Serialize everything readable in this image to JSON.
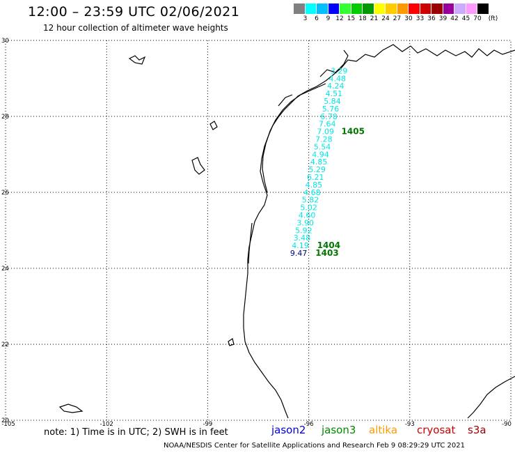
{
  "header": {
    "title": "12:00 – 23:59 UTC 02/06/2021",
    "subtitle": "12 hour collection of altimeter wave heights"
  },
  "legend": {
    "unit": "(ft)",
    "labels": [
      "3",
      "6",
      "9",
      "12",
      "15",
      "18",
      "21",
      "24",
      "27",
      "30",
      "33",
      "36",
      "39",
      "42",
      "45",
      "70"
    ],
    "colors": [
      "#808080",
      "#00ffff",
      "#00bfff",
      "#0000ff",
      "#33ff33",
      "#00cc00",
      "#009900",
      "#ffff00",
      "#ffcc00",
      "#ff9900",
      "#ff0000",
      "#cc0000",
      "#990000",
      "#990099",
      "#ccaaff",
      "#ff99ff",
      "#000000"
    ]
  },
  "axes": {
    "lon_labels": [
      "-105",
      "-102",
      "-99",
      "-96",
      "-93",
      "-90"
    ],
    "lat_labels": [
      "30",
      "28",
      "26",
      "24",
      "22",
      "20"
    ]
  },
  "tracks": [
    {
      "satellite": "jason2",
      "color": "#00e5e5",
      "points": [
        {
          "lat": 29.13,
          "lon": -95.1,
          "swh": "3.29"
        },
        {
          "lat": 28.93,
          "lon": -95.15,
          "swh": "4.48"
        },
        {
          "lat": 28.73,
          "lon": -95.2,
          "swh": "4.24"
        },
        {
          "lat": 28.53,
          "lon": -95.25,
          "swh": "4.51"
        },
        {
          "lat": 28.33,
          "lon": -95.3,
          "swh": "5.84"
        },
        {
          "lat": 28.13,
          "lon": -95.35,
          "swh": "5.76"
        },
        {
          "lat": 27.93,
          "lon": -95.4,
          "swh": "6.78"
        },
        {
          "lat": 27.73,
          "lon": -95.45,
          "swh": "7.64"
        },
        {
          "lat": 27.53,
          "lon": -95.5,
          "swh": "7.09"
        },
        {
          "lat": 27.33,
          "lon": -95.55,
          "swh": "7.28"
        },
        {
          "lat": 27.13,
          "lon": -95.6,
          "swh": "5.54"
        },
        {
          "lat": 26.93,
          "lon": -95.65,
          "swh": "4.94"
        },
        {
          "lat": 26.73,
          "lon": -95.7,
          "swh": "4.85"
        },
        {
          "lat": 26.53,
          "lon": -95.75,
          "swh": "5.29"
        },
        {
          "lat": 26.33,
          "lon": -95.8,
          "swh": "6.21"
        },
        {
          "lat": 26.13,
          "lon": -95.85,
          "swh": "4.85"
        },
        {
          "lat": 25.93,
          "lon": -95.9,
          "swh": "4.68"
        },
        {
          "lat": 25.73,
          "lon": -95.95,
          "swh": "5.82"
        },
        {
          "lat": 25.53,
          "lon": -96.0,
          "swh": "5.02"
        },
        {
          "lat": 25.33,
          "lon": -96.05,
          "swh": "4.60"
        },
        {
          "lat": 25.13,
          "lon": -96.1,
          "swh": "3.90"
        },
        {
          "lat": 24.93,
          "lon": -96.15,
          "swh": "5.92"
        },
        {
          "lat": 24.73,
          "lon": -96.2,
          "swh": "3.48"
        },
        {
          "lat": 24.53,
          "lon": -96.25,
          "swh": "4.19"
        },
        {
          "lat": 24.33,
          "lon": -96.3,
          "swh": "9.47",
          "color": "#00008b"
        }
      ]
    }
  ],
  "pass_labels": [
    {
      "text": "1405",
      "lat": 27.53,
      "lon": -95.03
    },
    {
      "text": "1404",
      "lat": 24.53,
      "lon": -95.75
    },
    {
      "text": "1403",
      "lat": 24.33,
      "lon": -95.8
    }
  ],
  "pass_label_color": "#007700",
  "note": "note:  1) Time is in UTC;  2) SWH is in feet",
  "satellites": [
    {
      "name": "jason2",
      "color": "#0000dd"
    },
    {
      "name": "jason3",
      "color": "#008800"
    },
    {
      "name": "altika",
      "color": "#ff9900"
    },
    {
      "name": "cryosat",
      "color": "#cc0000"
    },
    {
      "name": "s3a",
      "color": "#990000"
    }
  ],
  "credit": "NOAA/NESDIS Center for Satellite Applications and Research    Feb  9 08:29:29 UTC 2021"
}
